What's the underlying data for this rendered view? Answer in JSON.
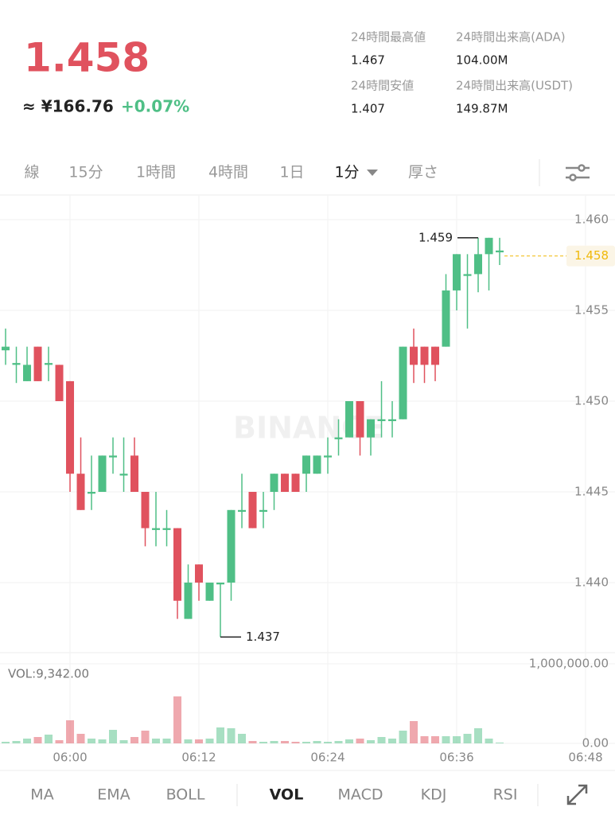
{
  "header": {
    "price": "1.458",
    "approx": "≈ ¥166.76",
    "change": "+0.07%",
    "stats": [
      {
        "label": "24時間最高値",
        "value": "1.467"
      },
      {
        "label": "24時間出来高(ADA)",
        "value": "104.00M"
      },
      {
        "label": "24時間安値",
        "value": "1.407"
      },
      {
        "label": "24時間出来高(USDT)",
        "value": "149.87M"
      }
    ]
  },
  "tabs": [
    "線",
    "15分",
    "1時間",
    "4時間",
    "1日",
    "1分",
    "厚さ"
  ],
  "indicators": [
    "MA",
    "EMA",
    "BOLL",
    "VOL",
    "MACD",
    "KDJ",
    "RSI"
  ],
  "chart_data": {
    "type": "candlestick",
    "watermark": "BINANCE",
    "volume_label": "VOL:9,342.00",
    "up_color": "#4fbf86",
    "down_color": "#e0525e",
    "x": [
      354,
      355,
      356,
      357,
      358,
      359,
      360,
      361,
      362,
      363,
      364,
      365,
      366,
      367,
      368,
      369,
      370,
      371,
      372,
      373,
      374,
      375,
      376,
      377,
      378,
      379,
      380,
      381,
      382,
      383,
      384,
      385,
      386,
      387,
      388,
      389,
      390,
      391,
      392,
      393,
      394,
      395,
      396,
      397,
      398,
      399,
      400
    ],
    "open": [
      1.4528,
      1.452,
      1.4511,
      1.453,
      1.452,
      1.452,
      1.4511,
      1.446,
      1.4449,
      1.445,
      1.4469,
      1.4459,
      1.447,
      1.445,
      1.4429,
      1.4429,
      1.443,
      1.438,
      1.441,
      1.439,
      1.4399,
      1.44,
      1.4439,
      1.445,
      1.4439,
      1.445,
      1.446,
      1.446,
      1.446,
      1.446,
      1.4469,
      1.4479,
      1.448,
      1.45,
      1.448,
      1.4489,
      1.4489,
      1.449,
      1.453,
      1.453,
      1.453,
      1.453,
      1.4561,
      1.4569,
      1.457,
      1.4581,
      1.4582
    ],
    "high": [
      1.454,
      1.453,
      1.453,
      1.453,
      1.453,
      1.452,
      1.4511,
      1.448,
      1.447,
      1.447,
      1.448,
      1.448,
      1.448,
      1.445,
      1.445,
      1.444,
      1.443,
      1.441,
      1.441,
      1.44,
      1.44,
      1.444,
      1.446,
      1.445,
      1.445,
      1.446,
      1.446,
      1.446,
      1.447,
      1.447,
      1.448,
      1.449,
      1.45,
      1.45,
      1.449,
      1.4511,
      1.45,
      1.453,
      1.454,
      1.453,
      1.453,
      1.457,
      1.4581,
      1.4581,
      1.459,
      1.459,
      1.459
    ],
    "low": [
      1.452,
      1.451,
      1.4511,
      1.4511,
      1.4511,
      1.45,
      1.445,
      1.444,
      1.444,
      1.445,
      1.446,
      1.445,
      1.445,
      1.442,
      1.442,
      1.442,
      1.438,
      1.438,
      1.439,
      1.439,
      1.437,
      1.439,
      1.443,
      1.443,
      1.443,
      1.444,
      1.445,
      1.445,
      1.445,
      1.446,
      1.446,
      1.447,
      1.448,
      1.447,
      1.447,
      1.448,
      1.448,
      1.449,
      1.451,
      1.451,
      1.4511,
      1.453,
      1.455,
      1.454,
      1.456,
      1.4561,
      1.4575
    ],
    "close": [
      1.453,
      1.4521,
      1.452,
      1.4511,
      1.4521,
      1.45,
      1.446,
      1.444,
      1.445,
      1.447,
      1.447,
      1.446,
      1.445,
      1.443,
      1.443,
      1.443,
      1.439,
      1.44,
      1.44,
      1.44,
      1.44,
      1.444,
      1.444,
      1.443,
      1.444,
      1.446,
      1.445,
      1.445,
      1.447,
      1.447,
      1.447,
      1.448,
      1.45,
      1.448,
      1.449,
      1.449,
      1.449,
      1.453,
      1.452,
      1.452,
      1.452,
      1.4561,
      1.4581,
      1.457,
      1.4581,
      1.459,
      1.4583
    ],
    "volume": [
      20000,
      30000,
      60000,
      80000,
      110000,
      40000,
      290000,
      120000,
      60000,
      50000,
      170000,
      40000,
      80000,
      160000,
      60000,
      60000,
      590000,
      50000,
      50000,
      60000,
      200000,
      190000,
      120000,
      30000,
      20000,
      30000,
      30000,
      20000,
      20000,
      30000,
      20000,
      30000,
      50000,
      60000,
      40000,
      80000,
      60000,
      160000,
      280000,
      90000,
      90000,
      90000,
      90000,
      120000,
      190000,
      60000,
      10000
    ],
    "xlim": [
      353.48,
      410.74
    ],
    "xticks": [
      {
        "value": 360,
        "label": "06:00"
      },
      {
        "value": 372,
        "label": "06:12"
      },
      {
        "value": 384,
        "label": "06:24"
      },
      {
        "value": 396,
        "label": "06:36"
      },
      {
        "value": 408,
        "label": "06:48"
      }
    ],
    "ylim": [
      1.43614,
      1.46136
    ],
    "yticks": [
      {
        "value": 1.44,
        "label": "1.440"
      },
      1.445,
      {
        "value": 1.45,
        "label": "1.450"
      },
      1.455,
      {
        "value": 1.46,
        "label": "1.460"
      }
    ],
    "y2lim": [
      0,
      1000000
    ],
    "y2ticks": [
      {
        "value": 0,
        "label": "0.00"
      },
      {
        "value": 1000000,
        "label": "1,000,000.00"
      }
    ],
    "annotations": [
      {
        "label": "1.459",
        "value": 1.459
      },
      {
        "label": "1.437",
        "value": 1.437
      }
    ],
    "last_price": {
      "label": "1.458",
      "value": 1.458
    },
    "grid": true
  }
}
